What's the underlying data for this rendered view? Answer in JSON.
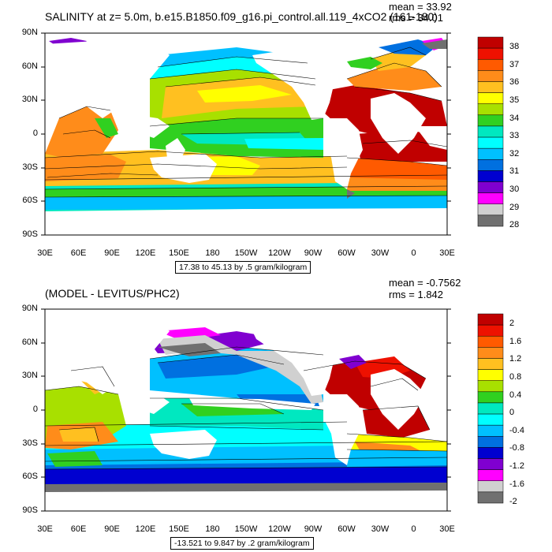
{
  "panels": [
    {
      "title": "SALINITY at z=   5.0m, b.e15.B1850.f09_g16.pi_control.all.119_4xCO2 (161-180)",
      "mean": "mean = 33.92",
      "rms": "rms = 34.01",
      "footer": "17.38 to 45.13 by .5 gram/kilogram",
      "colorbar": {
        "labels": [
          "38",
          "37",
          "36",
          "35",
          "34",
          "33",
          "32",
          "31",
          "30",
          "29",
          "28"
        ],
        "colors": [
          "#c00000",
          "#ee1100",
          "#ff5a00",
          "#ff8c1a",
          "#ffc020",
          "#ffff00",
          "#a8e000",
          "#30d020",
          "#00e8c0",
          "#00ffff",
          "#00c0ff",
          "#0070e0",
          "#0000d0",
          "#8000d0",
          "#ff00ff",
          "#d0d0d0",
          "#707070"
        ]
      }
    },
    {
      "title": "(MODEL - LEVITUS/PHC2)",
      "mean": "mean = -0.7562",
      "rms": "rms = 1.842",
      "footer": "-13.521 to 9.847 by .2 gram/kilogram",
      "colorbar": {
        "labels": [
          "2",
          "1.6",
          "1.2",
          "0.8",
          "0.4",
          "0",
          "-0.4",
          "-0.8",
          "-1.2",
          "-1.6",
          "-2"
        ],
        "colors": [
          "#c00000",
          "#ee1100",
          "#ff5a00",
          "#ff8c1a",
          "#ffc020",
          "#ffff00",
          "#a8e000",
          "#30d020",
          "#00e8c0",
          "#00ffff",
          "#00c0ff",
          "#0070e0",
          "#0000d0",
          "#8000d0",
          "#ff00ff",
          "#d0d0d0",
          "#707070"
        ]
      }
    }
  ],
  "axes": {
    "lat_labels": [
      "90N",
      "60N",
      "30N",
      "0",
      "30S",
      "60S",
      "90S"
    ],
    "lon_labels": [
      "30E",
      "60E",
      "90E",
      "120E",
      "150E",
      "180",
      "150W",
      "120W",
      "90W",
      "60W",
      "30W",
      "0",
      "30E"
    ]
  }
}
